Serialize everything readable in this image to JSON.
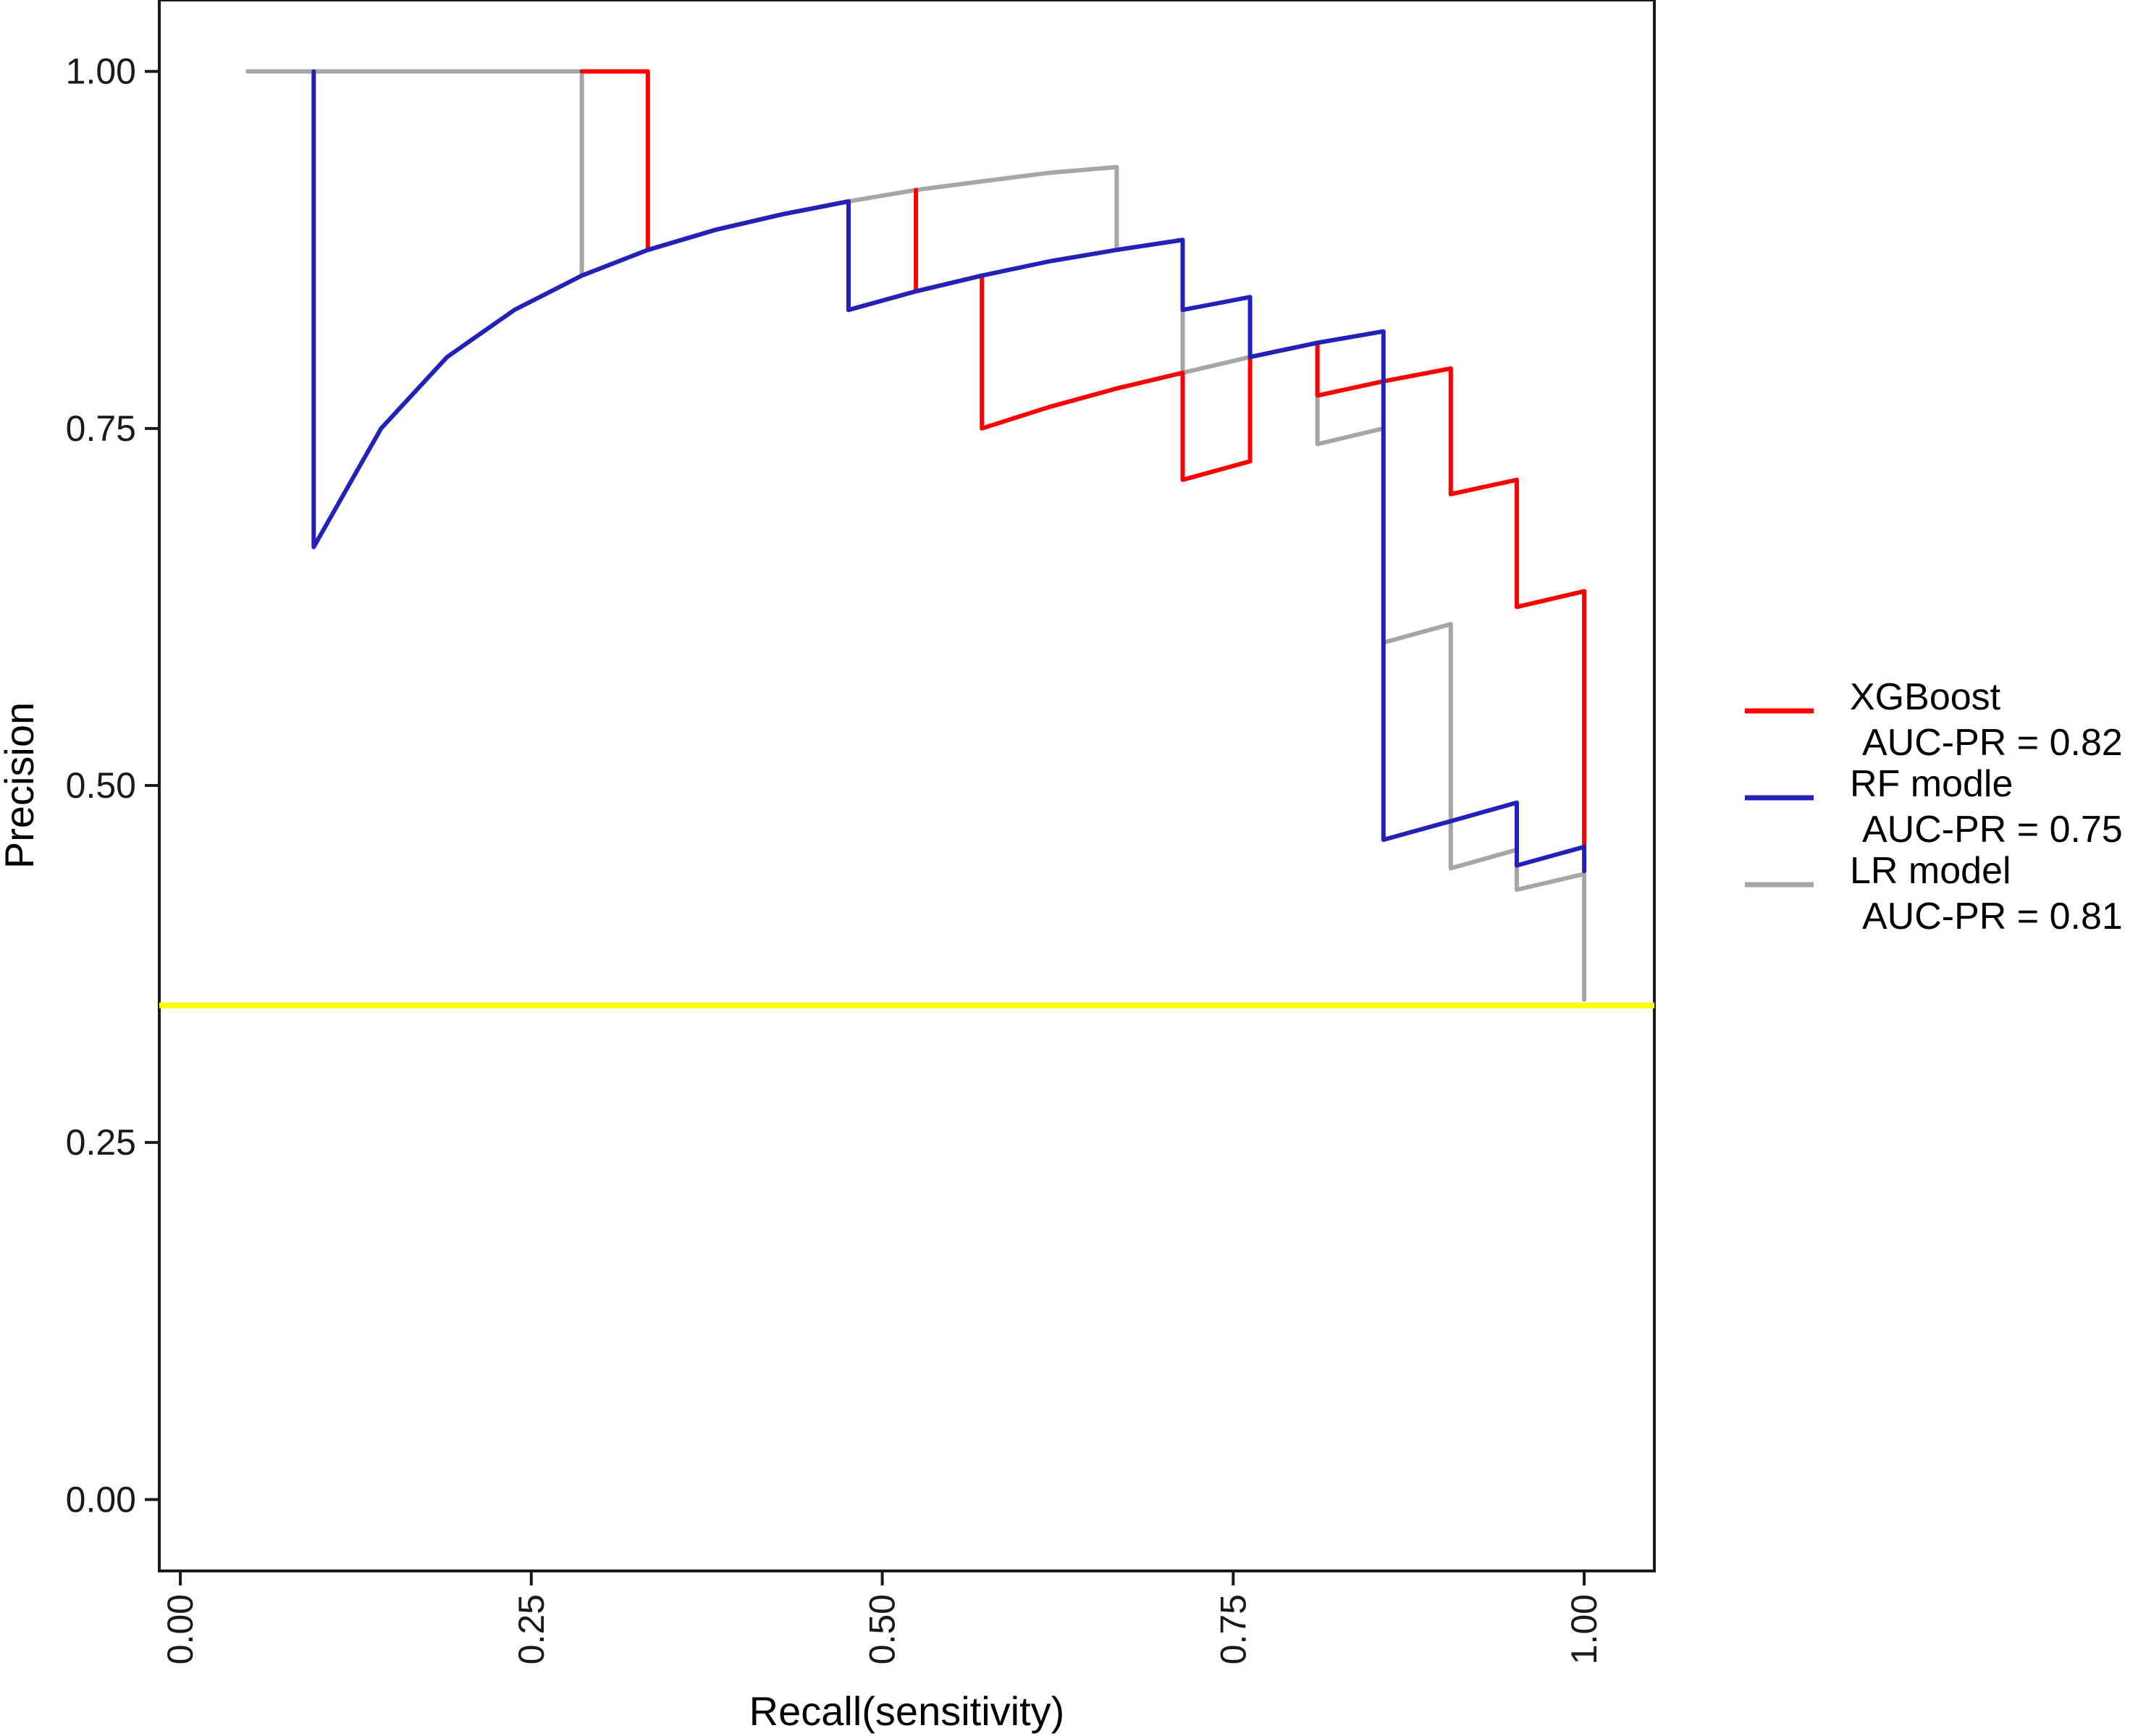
{
  "chart_data": {
    "type": "line",
    "title": "",
    "xlabel": "Recall(sensitivity)",
    "ylabel": "Precision",
    "xlim": [
      -0.015,
      1.05
    ],
    "ylim": [
      -0.05,
      1.05
    ],
    "x_ticks": [
      0.0,
      0.25,
      0.5,
      0.75,
      1.0
    ],
    "x_tick_labels": [
      "0.00",
      "0.25",
      "0.50",
      "0.75",
      "1.00"
    ],
    "y_ticks": [
      0.0,
      0.25,
      0.5,
      0.75,
      1.0
    ],
    "y_tick_labels": [
      "0.00",
      "0.25",
      "0.50",
      "0.75",
      "1.00"
    ],
    "grid": false,
    "legend_position": "right",
    "baseline": {
      "y": 0.346,
      "color": "#ffff00"
    },
    "series": [
      {
        "name": "XGBoost",
        "label_lines": [
          "XGBoost",
          "AUC-PR = 0.82"
        ],
        "color": "#ff0000",
        "points": [
          [
            0.286,
            1.0
          ],
          [
            0.333,
            1.0
          ],
          [
            0.333,
            0.875
          ],
          [
            0.381,
            0.889
          ],
          [
            0.429,
            0.9
          ],
          [
            0.476,
            0.909
          ],
          [
            0.476,
            0.833
          ],
          [
            0.524,
            0.846
          ],
          [
            0.524,
            0.917
          ],
          [
            0.524,
            0.846
          ],
          [
            0.571,
            0.857
          ],
          [
            0.571,
            0.75
          ],
          [
            0.619,
            0.765
          ],
          [
            0.667,
            0.778
          ],
          [
            0.714,
            0.789
          ],
          [
            0.714,
            0.714
          ],
          [
            0.762,
            0.727
          ],
          [
            0.762,
            0.8
          ],
          [
            0.81,
            0.81
          ],
          [
            0.81,
            0.773
          ],
          [
            0.857,
            0.783
          ],
          [
            0.905,
            0.792
          ],
          [
            0.905,
            0.704
          ],
          [
            0.952,
            0.714
          ],
          [
            0.952,
            0.625
          ],
          [
            1.0,
            0.636
          ],
          [
            1.0,
            0.457
          ]
        ]
      },
      {
        "name": "RF modle",
        "label_lines": [
          "RF modle",
          "AUC-PR = 0.75"
        ],
        "color": "#2222bb",
        "points": [
          [
            0.095,
            1.0
          ],
          [
            0.095,
            0.667
          ],
          [
            0.143,
            0.75
          ],
          [
            0.19,
            0.8
          ],
          [
            0.238,
            0.833
          ],
          [
            0.286,
            0.857
          ],
          [
            0.286,
            0.857
          ],
          [
            0.333,
            0.875
          ],
          [
            0.381,
            0.889
          ],
          [
            0.429,
            0.9
          ],
          [
            0.476,
            0.909
          ],
          [
            0.476,
            0.833
          ],
          [
            0.524,
            0.846
          ],
          [
            0.571,
            0.857
          ],
          [
            0.619,
            0.867
          ],
          [
            0.667,
            0.875
          ],
          [
            0.714,
            0.882
          ],
          [
            0.714,
            0.833
          ],
          [
            0.762,
            0.842
          ],
          [
            0.762,
            0.8
          ],
          [
            0.81,
            0.81
          ],
          [
            0.81,
            0.81
          ],
          [
            0.857,
            0.818
          ],
          [
            0.857,
            0.462
          ],
          [
            0.905,
            0.475
          ],
          [
            0.952,
            0.488
          ],
          [
            0.952,
            0.444
          ],
          [
            1.0,
            0.457
          ],
          [
            1.0,
            0.44
          ]
        ]
      },
      {
        "name": "LR model",
        "label_lines": [
          "LR model",
          "AUC-PR = 0.81"
        ],
        "color": "#a6a6a6",
        "points": [
          [
            0.048,
            1.0
          ],
          [
            0.286,
            1.0
          ],
          [
            0.286,
            0.857
          ],
          [
            0.333,
            0.875
          ],
          [
            0.381,
            0.889
          ],
          [
            0.429,
            0.9
          ],
          [
            0.476,
            0.909
          ],
          [
            0.524,
            0.917
          ],
          [
            0.571,
            0.923
          ],
          [
            0.619,
            0.929
          ],
          [
            0.667,
            0.933
          ],
          [
            0.667,
            0.875
          ],
          [
            0.714,
            0.882
          ],
          [
            0.714,
            0.789
          ],
          [
            0.762,
            0.8
          ],
          [
            0.81,
            0.81
          ],
          [
            0.81,
            0.739
          ],
          [
            0.857,
            0.75
          ],
          [
            0.857,
            0.6
          ],
          [
            0.905,
            0.613
          ],
          [
            0.905,
            0.442
          ],
          [
            0.952,
            0.455
          ],
          [
            0.952,
            0.427
          ],
          [
            1.0,
            0.438
          ],
          [
            1.0,
            0.35
          ]
        ]
      }
    ]
  }
}
